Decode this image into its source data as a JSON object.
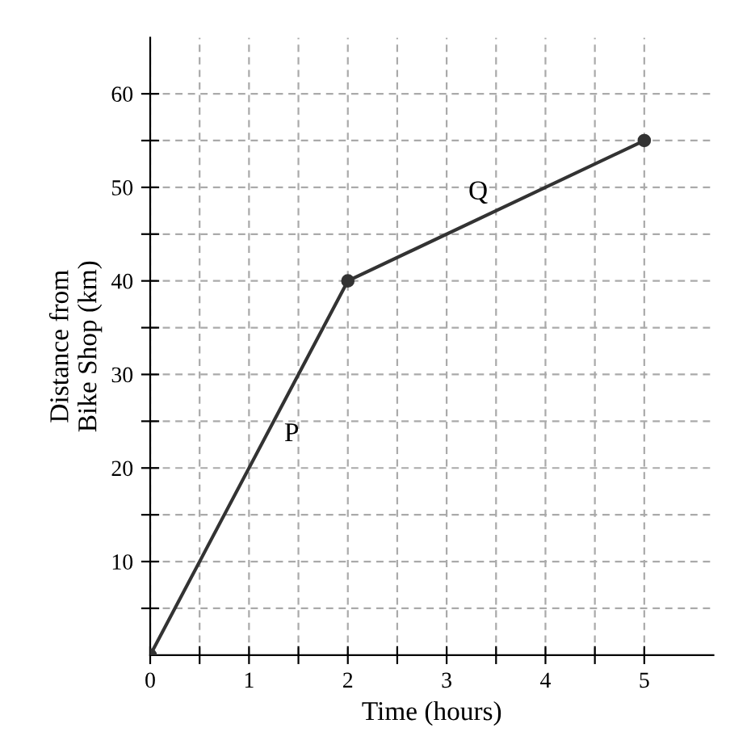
{
  "chart_data": {
    "type": "line",
    "xlabel": "Time (hours)",
    "ylabel": "Distance from\nBike Shop (km)",
    "x": [
      0,
      2,
      5
    ],
    "series": [
      {
        "color": "#333333",
        "values": [
          0,
          40,
          55
        ]
      }
    ],
    "marker": "circle",
    "line_style": "solid",
    "grid": true,
    "xlim": [
      0,
      5.7
    ],
    "ylim": [
      0,
      66
    ],
    "xticks": [
      0,
      {
        "value": 0.5,
        "label": null
      },
      1,
      {
        "value": 1.5,
        "label": null
      },
      2,
      {
        "value": 2.5,
        "label": null
      },
      3,
      {
        "value": 3.5,
        "label": null
      },
      4,
      {
        "value": 4.5,
        "label": null
      },
      5
    ],
    "yticks": [
      {
        "value": 5,
        "label": null
      },
      10,
      {
        "value": 15,
        "label": null
      },
      20,
      {
        "value": 25,
        "label": null
      },
      30,
      {
        "value": 35,
        "label": null
      },
      40,
      {
        "value": 45,
        "label": null
      },
      50,
      {
        "value": 55,
        "label": null
      },
      60
    ],
    "annotations": [
      {
        "text": "P",
        "x": 1.25,
        "y": 25
      },
      {
        "text": "Q",
        "x": 3.5,
        "y": 47.5
      }
    ]
  }
}
